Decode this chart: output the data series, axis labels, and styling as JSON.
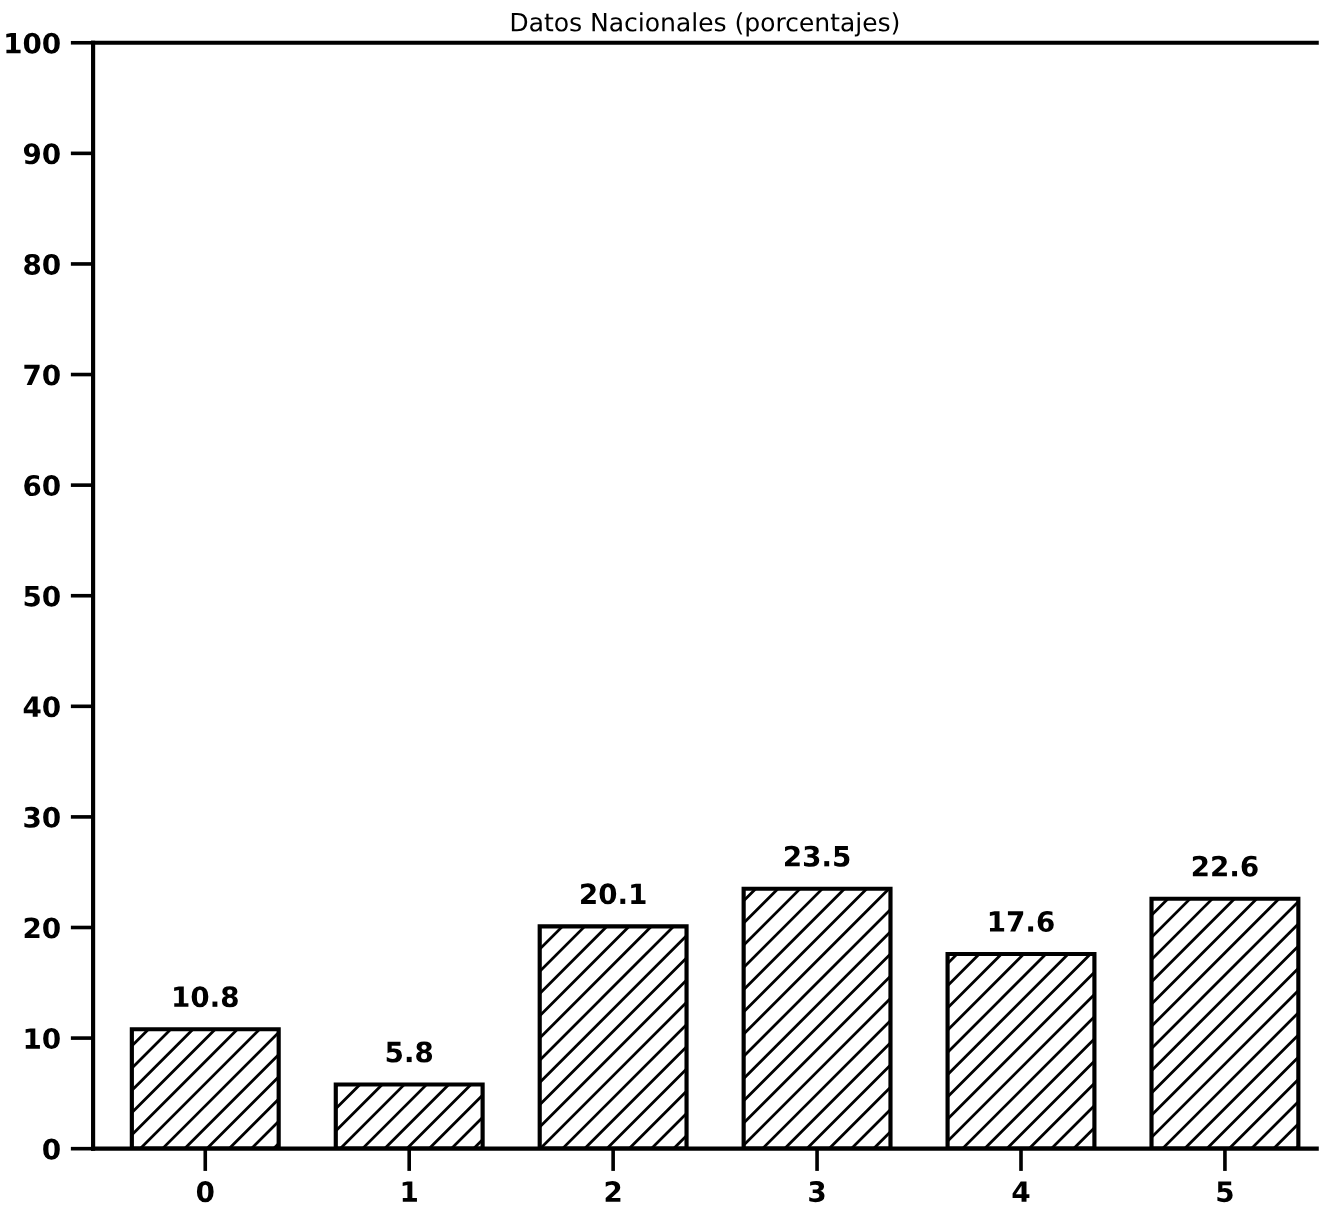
{
  "chart_data": {
    "type": "bar",
    "title": "Datos Nacionales (porcentajes)",
    "categories": [
      "0",
      "1",
      "2",
      "3",
      "4",
      "5"
    ],
    "values": [
      10.8,
      5.8,
      20.1,
      23.5,
      17.6,
      22.6
    ],
    "color": "#000000",
    "ylim": [
      0,
      100
    ],
    "yticks": [
      0,
      10,
      20,
      30,
      40,
      50,
      60,
      70,
      80,
      90,
      100
    ],
    "data_labels": true,
    "grid": false,
    "legend": false
  }
}
